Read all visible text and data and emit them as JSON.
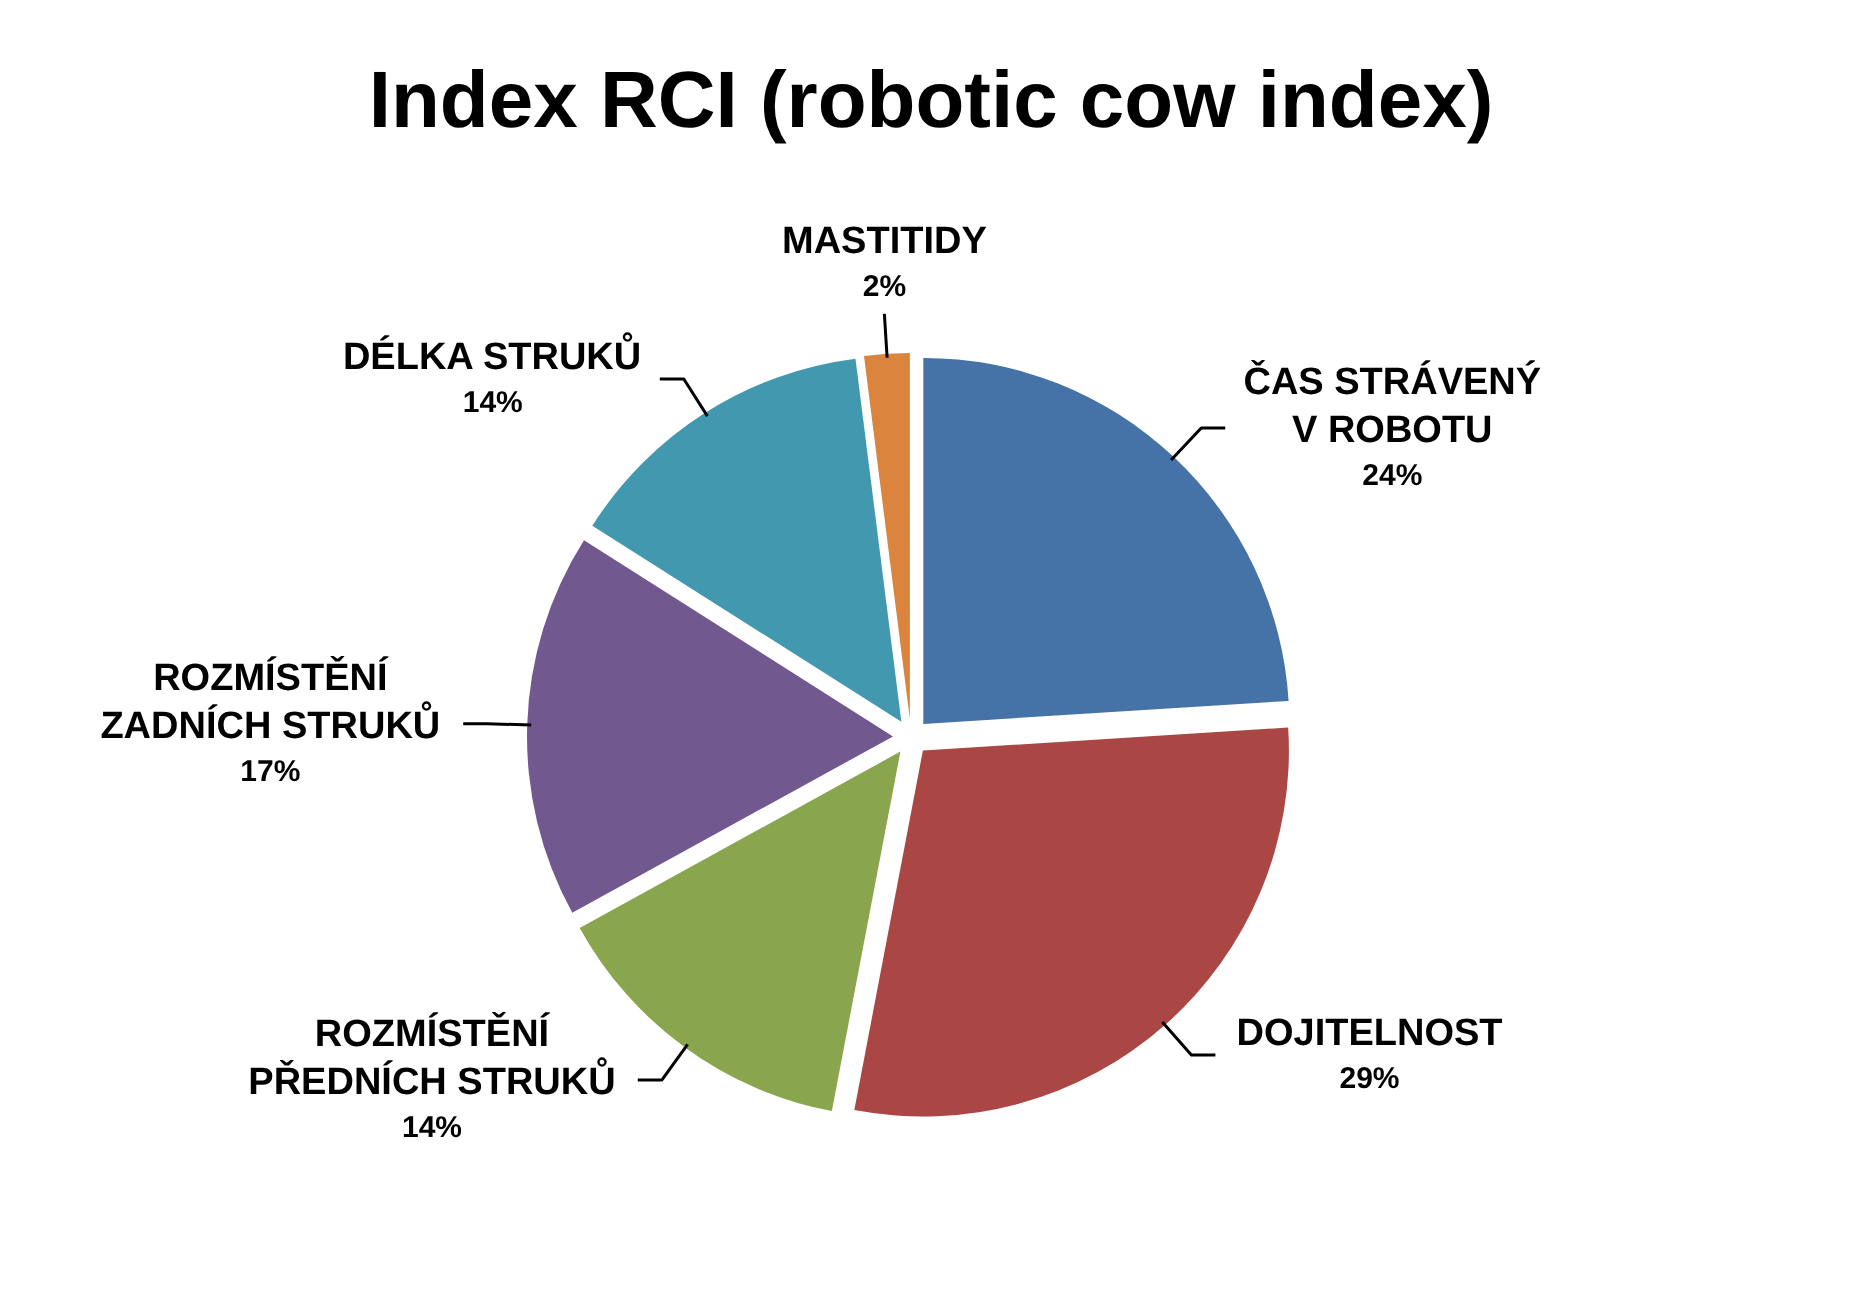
{
  "chart_data": {
    "type": "pie",
    "title": "Index RCI (robotic cow index)",
    "categories": [
      "ČAS STRÁVENÝ V ROBOTU",
      "DOJITELNOST",
      "ROZMÍSTĚNÍ PŘEDNÍCH STRUKŮ",
      "ROZMÍSTĚNÍ ZADNÍCH STRUKŮ",
      "DÉLKA STRUKŮ",
      "MASTITIDY"
    ],
    "values": [
      24,
      29,
      14,
      17,
      14,
      2
    ],
    "colors": [
      "#4572a7",
      "#aa4643",
      "#89a54e",
      "#71588f",
      "#4198af",
      "#db843d"
    ],
    "value_labels": [
      "24%",
      "29%",
      "14%",
      "17%",
      "14%",
      "2%"
    ]
  }
}
